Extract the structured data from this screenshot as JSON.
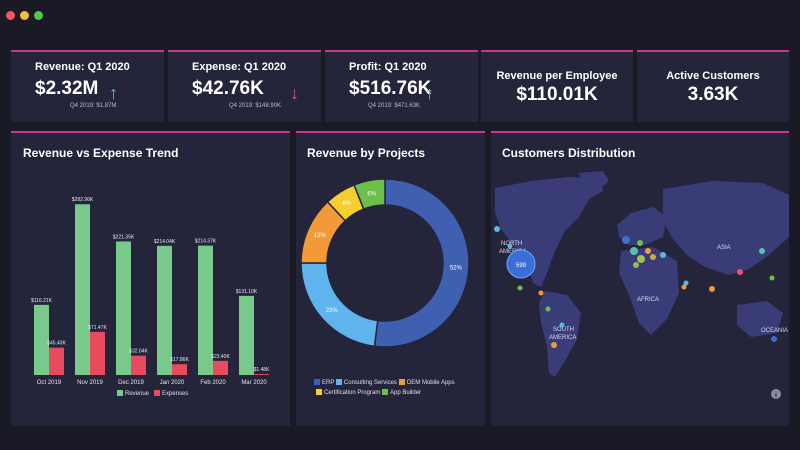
{
  "kpis": [
    {
      "title": "Revenue: Q1 2020",
      "value": "$2.32M",
      "trend": "up",
      "sub": "Q4 2019: $1.87M"
    },
    {
      "title": "Expense: Q1 2020",
      "value": "$42.76K",
      "trend": "down",
      "sub": "Q4 2019: $148.90K"
    },
    {
      "title": "Profit: Q1 2020",
      "value": "$516.76K",
      "trend": "up",
      "sub": "Q4 2019: $471.63K"
    },
    {
      "title": "Revenue per Employee",
      "value": "$110.01K"
    },
    {
      "title": "Active Customers",
      "value": "3.63K"
    }
  ],
  "colors": {
    "revenue": "#78c98a",
    "expenses": "#e84a5f",
    "accent": "#c8358a",
    "up": "#5bd67e",
    "down": "#f0506e"
  },
  "trend_chart": {
    "title": "Revenue vs Expense Trend",
    "chart_data": {
      "type": "bar",
      "categories": [
        "Oct 2019",
        "Nov 2019",
        "Dec 2019",
        "Jan 2020",
        "Feb 2020",
        "Mar 2020"
      ],
      "series": [
        {
          "name": "Revenue",
          "values": [
            116.21,
            282.96,
            221.35,
            214.04,
            214.37,
            131.1
          ],
          "labels": [
            "$116.21K",
            "$282.96K",
            "$221.35K",
            "$214.04K",
            "$214.37K",
            "$131.10K"
          ]
        },
        {
          "name": "Expenses",
          "values": [
            45.4,
            71.47,
            32.04,
            17.86,
            23.4,
            1.48
          ],
          "labels": [
            "$45.40K",
            "$71.47K",
            "$32.04K",
            "$17.86K",
            "$23.40K",
            "$1.48K"
          ]
        }
      ],
      "ylim": [
        0,
        290
      ]
    }
  },
  "projects_chart": {
    "title": "Revenue by Projects",
    "chart_data": {
      "type": "pie",
      "categories": [
        "ERP",
        "Consulting Services",
        "OEM Mobile Apps",
        "Certification Program",
        "App Builder"
      ],
      "values": [
        52,
        23,
        13,
        6,
        6
      ],
      "labels": [
        "52%",
        "23%",
        "13%",
        "6%",
        "6%"
      ],
      "colors": [
        "#3f5fb0",
        "#5fb4ee",
        "#f39a38",
        "#f6cf2e",
        "#6cc04a"
      ]
    }
  },
  "map": {
    "title": "Customers Distribution",
    "bubble_label": "599",
    "regions": [
      "NORTH",
      "AMERICA",
      "SOUTH",
      "AMERICA",
      "AFRICA",
      "ASIA",
      "OCEANIA"
    ],
    "info_icon": "i"
  }
}
